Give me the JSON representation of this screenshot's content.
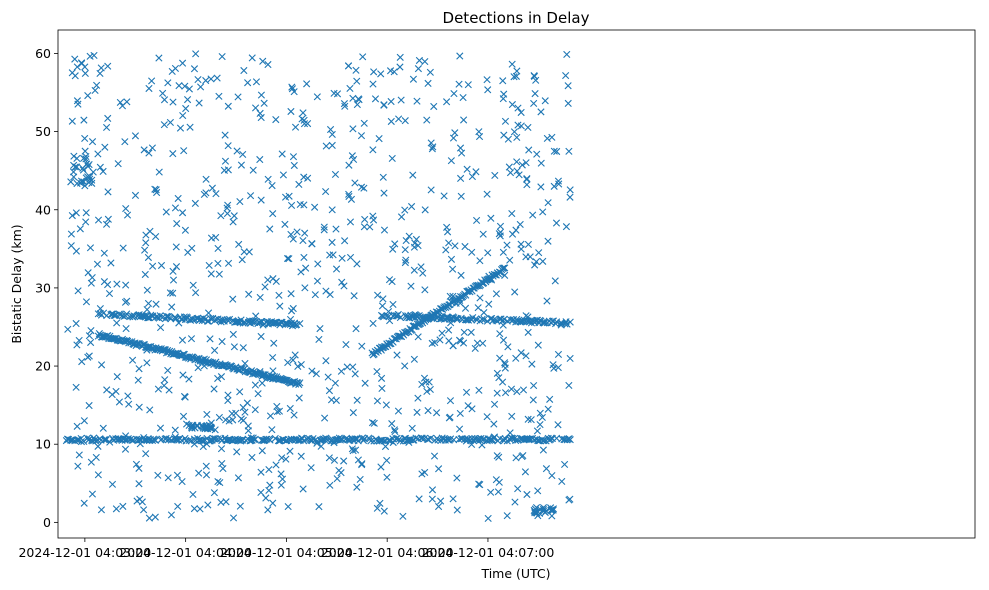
{
  "chart_data": {
    "type": "scatter",
    "title": "Detections in Delay",
    "xlabel": "Time (UTC)",
    "ylabel": "Bistatic Delay (km)",
    "marker": "x",
    "color": "#1f77b4",
    "xlim_seconds": [
      -16,
      530
    ],
    "ylim": [
      -2,
      63
    ],
    "x_ticks": [
      {
        "t": 0,
        "label": "2024-12-01 04:03:00"
      },
      {
        "t": 60,
        "label": "2024-12-01 04:04:00"
      },
      {
        "t": 120,
        "label": "2024-12-01 04:05:00"
      },
      {
        "t": 180,
        "label": "2024-12-01 04:06:00"
      },
      {
        "t": 240,
        "label": "2024-12-01 04:07:00"
      }
    ],
    "y_ticks": [
      0,
      10,
      20,
      30,
      40,
      50,
      60
    ],
    "time_range": [
      "2024-12-01 04:02:44",
      "2024-12-01 04:07:50"
    ],
    "track_segments": [
      {
        "name": "decreasing track",
        "t_start": 8,
        "t_end": 128,
        "y_start": 24.0,
        "y_end": 17.7
      },
      {
        "name": "increasing track",
        "t_start": 171,
        "t_end": 250,
        "y_start": 21.5,
        "y_end": 32.5
      },
      {
        "name": "band 26",
        "t_start": 8,
        "t_end": 128,
        "y_start": 26.7,
        "y_end": 25.3
      },
      {
        "name": "band 26b",
        "t_start": 176,
        "t_end": 289,
        "y_start": 26.5,
        "y_end": 25.5
      },
      {
        "name": "band 10.5",
        "t_start": -11,
        "t_end": 289,
        "y_start": 10.6,
        "y_end": 10.6
      }
    ]
  }
}
